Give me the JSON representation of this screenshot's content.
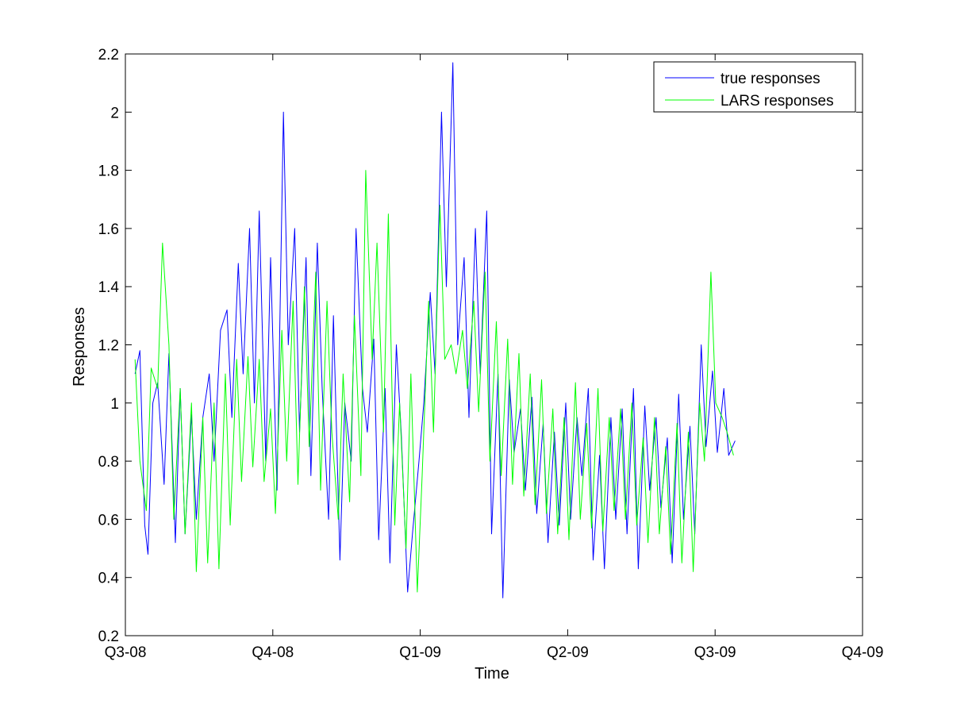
{
  "chart_data": {
    "type": "line",
    "title": "",
    "xlabel": "Time",
    "ylabel": "Responses",
    "x_tick_labels": [
      "Q3-08",
      "Q4-08",
      "Q1-09",
      "Q2-09",
      "Q3-09",
      "Q4-09"
    ],
    "xlim": [
      "2008-07-01",
      "2009-10-01"
    ],
    "ylim": [
      0.2,
      2.2
    ],
    "y_ticks": [
      0.2,
      0.4,
      0.6,
      0.8,
      1,
      1.2,
      1.4,
      1.6,
      1.8,
      2,
      2.2
    ],
    "y_tick_labels": [
      "0.2",
      "0.4",
      "0.6",
      "0.8",
      "1",
      "1.2",
      "1.4",
      "1.6",
      "1.8",
      "2",
      "2.2"
    ],
    "grid": false,
    "legend_position": "top-right",
    "series": [
      {
        "name": "true responses",
        "color": "#0000ff",
        "x": [
          "2008-07-07",
          "2008-07-10",
          "2008-07-13",
          "2008-07-15",
          "2008-07-18",
          "2008-07-21",
          "2008-07-25",
          "2008-07-28",
          "2008-08-01",
          "2008-08-04",
          "2008-08-07",
          "2008-08-11",
          "2008-08-14",
          "2008-08-18",
          "2008-08-22",
          "2008-08-25",
          "2008-08-29",
          "2008-09-02",
          "2008-09-05",
          "2008-09-09",
          "2008-09-12",
          "2008-09-16",
          "2008-09-19",
          "2008-09-22",
          "2008-09-26",
          "2008-09-29",
          "2008-10-03",
          "2008-10-07",
          "2008-10-10",
          "2008-10-14",
          "2008-10-17",
          "2008-10-21",
          "2008-10-24",
          "2008-10-28",
          "2008-10-31",
          "2008-11-04",
          "2008-11-07",
          "2008-11-11",
          "2008-11-14",
          "2008-11-18",
          "2008-11-21",
          "2008-11-25",
          "2008-11-28",
          "2008-12-02",
          "2008-12-05",
          "2008-12-09",
          "2008-12-12",
          "2008-12-16",
          "2008-12-19",
          "2008-12-23",
          "2008-12-26",
          "2008-12-30",
          "2009-01-02",
          "2009-01-06",
          "2009-01-09",
          "2009-01-13",
          "2009-01-16",
          "2009-01-20",
          "2009-01-23",
          "2009-01-27",
          "2009-01-30",
          "2009-02-03",
          "2009-02-06",
          "2009-02-10",
          "2009-02-13",
          "2009-02-17",
          "2009-02-20",
          "2009-02-24",
          "2009-02-27",
          "2009-03-03",
          "2009-03-06",
          "2009-03-10",
          "2009-03-13",
          "2009-03-17",
          "2009-03-20",
          "2009-03-24",
          "2009-03-27",
          "2009-03-31",
          "2009-04-03",
          "2009-04-07",
          "2009-04-10",
          "2009-04-14",
          "2009-04-17",
          "2009-04-21",
          "2009-04-24",
          "2009-04-28",
          "2009-05-01",
          "2009-05-05",
          "2009-05-08",
          "2009-05-12",
          "2009-05-15",
          "2009-05-19",
          "2009-05-22",
          "2009-05-26",
          "2009-05-29",
          "2009-06-02",
          "2009-06-05",
          "2009-06-09",
          "2009-06-12",
          "2009-06-16",
          "2009-06-19",
          "2009-06-23",
          "2009-06-26",
          "2009-06-30",
          "2009-07-03",
          "2009-07-07",
          "2009-07-10",
          "2009-07-14"
        ],
        "y": [
          1.1,
          1.18,
          0.58,
          0.48,
          1.0,
          1.07,
          0.72,
          1.17,
          0.52,
          1.05,
          0.55,
          0.96,
          0.6,
          0.95,
          1.1,
          0.8,
          1.25,
          1.32,
          0.95,
          1.48,
          1.1,
          1.6,
          1.0,
          1.66,
          0.8,
          1.5,
          0.7,
          2.0,
          1.2,
          1.6,
          0.9,
          1.5,
          0.75,
          1.55,
          1.05,
          0.6,
          1.3,
          0.46,
          1.0,
          0.8,
          1.6,
          1.05,
          0.9,
          1.22,
          0.53,
          1.05,
          0.45,
          1.2,
          0.9,
          0.35,
          0.55,
          0.8,
          1.0,
          1.38,
          1.1,
          2.0,
          1.4,
          2.17,
          1.2,
          1.5,
          0.95,
          1.6,
          1.1,
          1.66,
          0.55,
          1.1,
          0.33,
          1.08,
          0.83,
          0.98,
          0.7,
          1.02,
          0.62,
          0.93,
          0.52,
          0.9,
          0.58,
          1.0,
          0.6,
          0.95,
          0.75,
          1.05,
          0.46,
          0.82,
          0.43,
          0.95,
          0.6,
          0.98,
          0.55,
          1.05,
          0.43,
          0.99,
          0.7,
          0.95,
          0.64,
          0.88,
          0.45,
          1.03,
          0.6,
          0.92,
          0.55,
          1.2,
          0.85,
          1.11,
          0.83,
          1.05,
          0.82,
          0.87
        ]
      },
      {
        "name": "LARS responses",
        "color": "#00ff00",
        "x": [
          "2008-07-07",
          "2008-07-10",
          "2008-07-14",
          "2008-07-17",
          "2008-07-21",
          "2008-07-24",
          "2008-07-28",
          "2008-07-31",
          "2008-08-04",
          "2008-08-07",
          "2008-08-11",
          "2008-08-14",
          "2008-08-18",
          "2008-08-21",
          "2008-08-25",
          "2008-08-28",
          "2008-09-01",
          "2008-09-04",
          "2008-09-08",
          "2008-09-11",
          "2008-09-15",
          "2008-09-18",
          "2008-09-22",
          "2008-09-25",
          "2008-09-29",
          "2008-10-02",
          "2008-10-06",
          "2008-10-09",
          "2008-10-13",
          "2008-10-16",
          "2008-10-20",
          "2008-10-23",
          "2008-10-27",
          "2008-10-30",
          "2008-11-03",
          "2008-11-06",
          "2008-11-10",
          "2008-11-13",
          "2008-11-17",
          "2008-11-20",
          "2008-11-24",
          "2008-11-27",
          "2008-12-01",
          "2008-12-04",
          "2008-12-08",
          "2008-12-11",
          "2008-12-15",
          "2008-12-18",
          "2008-12-22",
          "2008-12-25",
          "2008-12-29",
          "2009-01-01",
          "2009-01-05",
          "2009-01-08",
          "2009-01-12",
          "2009-01-15",
          "2009-01-19",
          "2009-01-22",
          "2009-01-26",
          "2009-01-29",
          "2009-02-02",
          "2009-02-05",
          "2009-02-09",
          "2009-02-12",
          "2009-02-16",
          "2009-02-19",
          "2009-02-23",
          "2009-02-26",
          "2009-03-02",
          "2009-03-05",
          "2009-03-09",
          "2009-03-12",
          "2009-03-16",
          "2009-03-19",
          "2009-03-23",
          "2009-03-26",
          "2009-03-30",
          "2009-04-02",
          "2009-04-06",
          "2009-04-09",
          "2009-04-13",
          "2009-04-16",
          "2009-04-20",
          "2009-04-23",
          "2009-04-27",
          "2009-04-30",
          "2009-05-04",
          "2009-05-07",
          "2009-05-11",
          "2009-05-14",
          "2009-05-18",
          "2009-05-21",
          "2009-05-25",
          "2009-05-28",
          "2009-06-01",
          "2009-06-04",
          "2009-06-08",
          "2009-06-11",
          "2009-06-15",
          "2009-06-18",
          "2009-06-22",
          "2009-06-25",
          "2009-06-29",
          "2009-07-02",
          "2009-07-06",
          "2009-07-09",
          "2009-07-13"
        ],
        "y": [
          1.15,
          0.8,
          0.63,
          1.12,
          1.05,
          1.55,
          1.2,
          0.6,
          1.05,
          0.55,
          1.0,
          0.42,
          0.95,
          0.45,
          1.0,
          0.43,
          1.1,
          0.58,
          1.15,
          0.73,
          1.16,
          0.78,
          1.15,
          0.73,
          0.98,
          0.62,
          1.25,
          0.8,
          1.35,
          0.72,
          1.4,
          0.85,
          1.45,
          0.7,
          1.35,
          0.9,
          0.6,
          1.1,
          0.66,
          1.3,
          0.75,
          1.8,
          1.15,
          1.55,
          0.9,
          1.65,
          0.58,
          1.0,
          0.5,
          1.1,
          0.35,
          0.75,
          1.35,
          0.9,
          1.68,
          1.15,
          1.2,
          1.1,
          1.25,
          1.05,
          1.35,
          0.97,
          1.45,
          0.8,
          1.28,
          0.75,
          1.22,
          0.72,
          1.17,
          0.68,
          1.1,
          0.65,
          1.08,
          0.62,
          0.98,
          0.55,
          0.95,
          0.53,
          1.07,
          0.6,
          0.93,
          0.57,
          1.05,
          0.56,
          0.95,
          0.63,
          0.98,
          0.6,
          1.0,
          0.58,
          0.88,
          0.52,
          0.95,
          0.55,
          0.85,
          0.48,
          0.93,
          0.45,
          0.9,
          0.42,
          1.0,
          0.8,
          1.45,
          1.0,
          0.95,
          0.9,
          0.82
        ]
      }
    ]
  }
}
